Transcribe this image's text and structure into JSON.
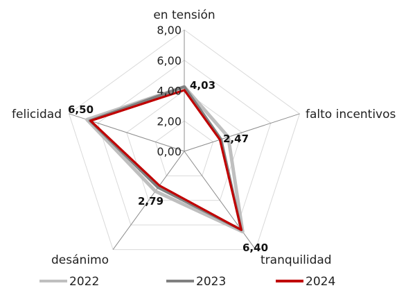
{
  "chart_data": {
    "type": "radar",
    "axes": [
      "en tensión",
      "falto incentivos",
      "tranquilidad",
      "desánimo",
      "felicidad"
    ],
    "series": [
      {
        "name": "2022",
        "values": [
          4.25,
          3.05,
          6.55,
          3.25,
          6.75
        ],
        "color": "#bfbfbf"
      },
      {
        "name": "2023",
        "values": [
          4.25,
          2.55,
          6.4,
          2.95,
          6.55
        ],
        "color": "#808080"
      },
      {
        "name": "2024",
        "values": [
          4.03,
          2.47,
          6.4,
          2.79,
          6.5
        ],
        "color": "#c00000"
      }
    ],
    "range": [
      0,
      8
    ],
    "ticks": [
      "0,00",
      "2,00",
      "4,00",
      "6,00",
      "8,00"
    ],
    "data_labels": [
      "4,03",
      "2,47",
      "6,40",
      "2,79",
      "6,50"
    ],
    "grid": true,
    "legend": "bottom"
  }
}
